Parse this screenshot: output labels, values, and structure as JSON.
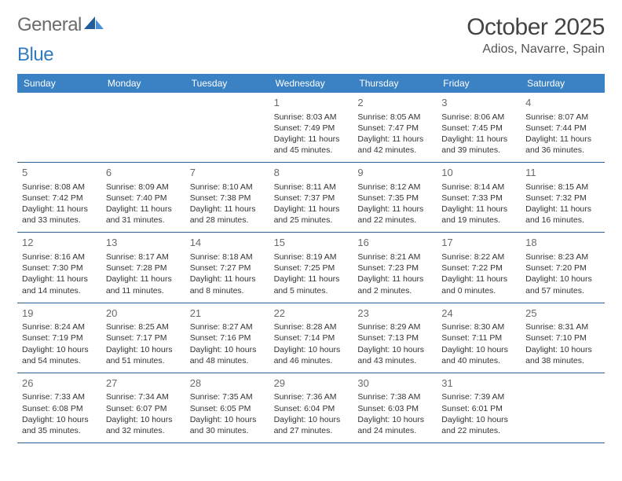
{
  "logo": {
    "part1": "General",
    "part2": "Blue"
  },
  "header": {
    "month_title": "October 2025",
    "location": "Adios, Navarre, Spain"
  },
  "day_of_week_labels": [
    "Sunday",
    "Monday",
    "Tuesday",
    "Wednesday",
    "Thursday",
    "Friday",
    "Saturday"
  ],
  "colors": {
    "header_band": "#3b82c4",
    "week_border": "#2f5f8f",
    "logo_grey": "#6b6b6b",
    "logo_blue": "#2f7bbf",
    "sail_dark": "#1f5d9c",
    "sail_light": "#4a90d9"
  },
  "weeks": [
    [
      {
        "n": "",
        "sunrise": "",
        "sunset": "",
        "d1": "",
        "d2": ""
      },
      {
        "n": "",
        "sunrise": "",
        "sunset": "",
        "d1": "",
        "d2": ""
      },
      {
        "n": "",
        "sunrise": "",
        "sunset": "",
        "d1": "",
        "d2": ""
      },
      {
        "n": "1",
        "sunrise": "Sunrise: 8:03 AM",
        "sunset": "Sunset: 7:49 PM",
        "d1": "Daylight: 11 hours",
        "d2": "and 45 minutes."
      },
      {
        "n": "2",
        "sunrise": "Sunrise: 8:05 AM",
        "sunset": "Sunset: 7:47 PM",
        "d1": "Daylight: 11 hours",
        "d2": "and 42 minutes."
      },
      {
        "n": "3",
        "sunrise": "Sunrise: 8:06 AM",
        "sunset": "Sunset: 7:45 PM",
        "d1": "Daylight: 11 hours",
        "d2": "and 39 minutes."
      },
      {
        "n": "4",
        "sunrise": "Sunrise: 8:07 AM",
        "sunset": "Sunset: 7:44 PM",
        "d1": "Daylight: 11 hours",
        "d2": "and 36 minutes."
      }
    ],
    [
      {
        "n": "5",
        "sunrise": "Sunrise: 8:08 AM",
        "sunset": "Sunset: 7:42 PM",
        "d1": "Daylight: 11 hours",
        "d2": "and 33 minutes."
      },
      {
        "n": "6",
        "sunrise": "Sunrise: 8:09 AM",
        "sunset": "Sunset: 7:40 PM",
        "d1": "Daylight: 11 hours",
        "d2": "and 31 minutes."
      },
      {
        "n": "7",
        "sunrise": "Sunrise: 8:10 AM",
        "sunset": "Sunset: 7:38 PM",
        "d1": "Daylight: 11 hours",
        "d2": "and 28 minutes."
      },
      {
        "n": "8",
        "sunrise": "Sunrise: 8:11 AM",
        "sunset": "Sunset: 7:37 PM",
        "d1": "Daylight: 11 hours",
        "d2": "and 25 minutes."
      },
      {
        "n": "9",
        "sunrise": "Sunrise: 8:12 AM",
        "sunset": "Sunset: 7:35 PM",
        "d1": "Daylight: 11 hours",
        "d2": "and 22 minutes."
      },
      {
        "n": "10",
        "sunrise": "Sunrise: 8:14 AM",
        "sunset": "Sunset: 7:33 PM",
        "d1": "Daylight: 11 hours",
        "d2": "and 19 minutes."
      },
      {
        "n": "11",
        "sunrise": "Sunrise: 8:15 AM",
        "sunset": "Sunset: 7:32 PM",
        "d1": "Daylight: 11 hours",
        "d2": "and 16 minutes."
      }
    ],
    [
      {
        "n": "12",
        "sunrise": "Sunrise: 8:16 AM",
        "sunset": "Sunset: 7:30 PM",
        "d1": "Daylight: 11 hours",
        "d2": "and 14 minutes."
      },
      {
        "n": "13",
        "sunrise": "Sunrise: 8:17 AM",
        "sunset": "Sunset: 7:28 PM",
        "d1": "Daylight: 11 hours",
        "d2": "and 11 minutes."
      },
      {
        "n": "14",
        "sunrise": "Sunrise: 8:18 AM",
        "sunset": "Sunset: 7:27 PM",
        "d1": "Daylight: 11 hours",
        "d2": "and 8 minutes."
      },
      {
        "n": "15",
        "sunrise": "Sunrise: 8:19 AM",
        "sunset": "Sunset: 7:25 PM",
        "d1": "Daylight: 11 hours",
        "d2": "and 5 minutes."
      },
      {
        "n": "16",
        "sunrise": "Sunrise: 8:21 AM",
        "sunset": "Sunset: 7:23 PM",
        "d1": "Daylight: 11 hours",
        "d2": "and 2 minutes."
      },
      {
        "n": "17",
        "sunrise": "Sunrise: 8:22 AM",
        "sunset": "Sunset: 7:22 PM",
        "d1": "Daylight: 11 hours",
        "d2": "and 0 minutes."
      },
      {
        "n": "18",
        "sunrise": "Sunrise: 8:23 AM",
        "sunset": "Sunset: 7:20 PM",
        "d1": "Daylight: 10 hours",
        "d2": "and 57 minutes."
      }
    ],
    [
      {
        "n": "19",
        "sunrise": "Sunrise: 8:24 AM",
        "sunset": "Sunset: 7:19 PM",
        "d1": "Daylight: 10 hours",
        "d2": "and 54 minutes."
      },
      {
        "n": "20",
        "sunrise": "Sunrise: 8:25 AM",
        "sunset": "Sunset: 7:17 PM",
        "d1": "Daylight: 10 hours",
        "d2": "and 51 minutes."
      },
      {
        "n": "21",
        "sunrise": "Sunrise: 8:27 AM",
        "sunset": "Sunset: 7:16 PM",
        "d1": "Daylight: 10 hours",
        "d2": "and 48 minutes."
      },
      {
        "n": "22",
        "sunrise": "Sunrise: 8:28 AM",
        "sunset": "Sunset: 7:14 PM",
        "d1": "Daylight: 10 hours",
        "d2": "and 46 minutes."
      },
      {
        "n": "23",
        "sunrise": "Sunrise: 8:29 AM",
        "sunset": "Sunset: 7:13 PM",
        "d1": "Daylight: 10 hours",
        "d2": "and 43 minutes."
      },
      {
        "n": "24",
        "sunrise": "Sunrise: 8:30 AM",
        "sunset": "Sunset: 7:11 PM",
        "d1": "Daylight: 10 hours",
        "d2": "and 40 minutes."
      },
      {
        "n": "25",
        "sunrise": "Sunrise: 8:31 AM",
        "sunset": "Sunset: 7:10 PM",
        "d1": "Daylight: 10 hours",
        "d2": "and 38 minutes."
      }
    ],
    [
      {
        "n": "26",
        "sunrise": "Sunrise: 7:33 AM",
        "sunset": "Sunset: 6:08 PM",
        "d1": "Daylight: 10 hours",
        "d2": "and 35 minutes."
      },
      {
        "n": "27",
        "sunrise": "Sunrise: 7:34 AM",
        "sunset": "Sunset: 6:07 PM",
        "d1": "Daylight: 10 hours",
        "d2": "and 32 minutes."
      },
      {
        "n": "28",
        "sunrise": "Sunrise: 7:35 AM",
        "sunset": "Sunset: 6:05 PM",
        "d1": "Daylight: 10 hours",
        "d2": "and 30 minutes."
      },
      {
        "n": "29",
        "sunrise": "Sunrise: 7:36 AM",
        "sunset": "Sunset: 6:04 PM",
        "d1": "Daylight: 10 hours",
        "d2": "and 27 minutes."
      },
      {
        "n": "30",
        "sunrise": "Sunrise: 7:38 AM",
        "sunset": "Sunset: 6:03 PM",
        "d1": "Daylight: 10 hours",
        "d2": "and 24 minutes."
      },
      {
        "n": "31",
        "sunrise": "Sunrise: 7:39 AM",
        "sunset": "Sunset: 6:01 PM",
        "d1": "Daylight: 10 hours",
        "d2": "and 22 minutes."
      },
      {
        "n": "",
        "sunrise": "",
        "sunset": "",
        "d1": "",
        "d2": ""
      }
    ]
  ]
}
